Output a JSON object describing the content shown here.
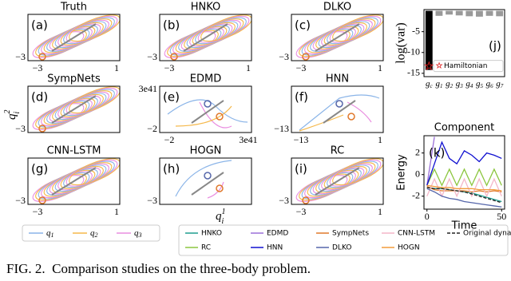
{
  "panels": [
    {
      "title": "Truth",
      "label": "(a)",
      "xticks": [
        "−3",
        "1"
      ],
      "yticks": [
        "−3"
      ]
    },
    {
      "title": "HNKO",
      "label": "(b)",
      "xticks": [
        "−3",
        "1"
      ],
      "yticks": [
        "−3"
      ]
    },
    {
      "title": "DLKO",
      "label": "(c)",
      "xticks": [
        "−3",
        "1"
      ],
      "yticks": [
        "−3"
      ]
    },
    {
      "title": "SympNets",
      "label": "(d)",
      "xticks": [],
      "yticks": [
        "−3"
      ]
    },
    {
      "title": "EDMD",
      "label": "(e)",
      "xticks": [
        "−2",
        "3e41"
      ],
      "yticks": [
        "3e41",
        "−2"
      ]
    },
    {
      "title": "HNN",
      "label": "(f)",
      "xticks": [
        "−13",
        "1"
      ],
      "yticks": [
        "−13"
      ]
    },
    {
      "title": "CNN-LSTM",
      "label": "(g)",
      "xticks": [
        "−3",
        "1"
      ],
      "yticks": [
        "−3"
      ]
    },
    {
      "title": "HOGN",
      "label": "(h)",
      "xticks": [],
      "yticks": [
        "−3"
      ]
    },
    {
      "title": "RC",
      "label": "(i)",
      "xticks": [
        "−3",
        "1"
      ],
      "yticks": [
        "−3"
      ]
    }
  ],
  "axis_labels": {
    "y": {
      "base": "q",
      "sub": "i",
      "sup": "2"
    },
    "x": {
      "base": "q",
      "sub": "i",
      "sup": "1"
    }
  },
  "trajectory_legend": [
    {
      "base": "q",
      "sub": "1",
      "color": "#8ab4e8"
    },
    {
      "base": "q",
      "sub": "2",
      "color": "#f5b84a"
    },
    {
      "base": "q",
      "sub": "3",
      "color": "#e98ee0"
    }
  ],
  "chart_data": [
    {
      "type": "bar",
      "label": "(j)",
      "ylabel": "log(var)",
      "category_symbol": "g",
      "categories": [
        "c",
        "1",
        "2",
        "3",
        "4",
        "5",
        "6",
        "7"
      ],
      "values": [
        -14.2,
        -1.2,
        -0.9,
        -1.1,
        -1.3,
        -1.4,
        -1.2,
        -1.3
      ],
      "colors": [
        "#000000",
        "#999999",
        "#999999",
        "#999999",
        "#999999",
        "#999999",
        "#999999",
        "#999999"
      ],
      "ylim": [
        -15.8,
        0.3
      ],
      "yticks": [
        -15,
        -10,
        -5
      ],
      "annotation": "Hamiltonian",
      "annotation_color": "#e02020"
    },
    {
      "type": "line",
      "label": "(k)",
      "title": "Component",
      "xlabel": "Time",
      "ylabel": "Energy",
      "x": [
        0,
        5,
        10,
        15,
        20,
        25,
        30,
        35,
        40,
        45,
        50
      ],
      "xlim": [
        -2,
        52
      ],
      "xticks": [
        0,
        50
      ],
      "ylim": [
        -3.2,
        3.6
      ],
      "yticks": [
        -2,
        0,
        2
      ],
      "series": [
        {
          "name": "HNKO",
          "color": "#1f9e8f",
          "values": [
            -1.2,
            -1.3,
            -1.3,
            -1.4,
            -1.5,
            -1.6,
            -1.7,
            -1.9,
            -2.1,
            -2.3,
            -2.5
          ]
        },
        {
          "name": "EDMD",
          "color": "#9a6fd8",
          "values": [
            -1.0,
            3.5,
            null,
            null,
            null,
            null,
            null,
            null,
            null,
            null,
            null
          ]
        },
        {
          "name": "SympNets",
          "color": "#e0782a",
          "values": [
            -1.1,
            -1.4,
            -1.5,
            -1.5,
            -1.5,
            -1.5,
            -1.6,
            -1.5,
            -1.6,
            -1.5,
            -1.6
          ]
        },
        {
          "name": "CNN-LSTM",
          "color": "#f4b6c8",
          "values": [
            -2.0,
            -0.4,
            -2.0,
            -0.4,
            -2.0,
            -0.4,
            -2.0,
            -0.4,
            -2.0,
            -0.4,
            -2.0
          ]
        },
        {
          "name": "Original dynamics",
          "color": "#222222",
          "dash": true,
          "values": [
            -1.2,
            -1.3,
            -1.3,
            -1.4,
            -1.5,
            -1.6,
            -1.8,
            -2.0,
            -2.2,
            -2.4,
            -2.6
          ]
        },
        {
          "name": "RC",
          "color": "#8cc63f",
          "values": [
            -1.0,
            0.5,
            -1.0,
            0.5,
            -1.0,
            0.5,
            -1.0,
            0.5,
            -1.0,
            0.5,
            -1.0
          ]
        },
        {
          "name": "HNN",
          "color": "#1010d0",
          "values": [
            -1.0,
            1.0,
            3.0,
            1.5,
            1.0,
            2.2,
            1.8,
            1.2,
            2.0,
            1.8,
            1.5
          ]
        },
        {
          "name": "DLKO",
          "color": "#5566aa",
          "values": [
            -1.3,
            -1.6,
            -2.0,
            -2.2,
            -2.3,
            -2.5,
            -2.6,
            -2.7,
            -2.8,
            -2.9,
            -3.0
          ]
        },
        {
          "name": "HOGN",
          "color": "#f29a3a",
          "values": [
            -1.0,
            -1.1,
            -1.2,
            -1.2,
            -1.3,
            -1.3,
            -1.3,
            -1.4,
            -1.4,
            -1.4,
            -1.5
          ]
        }
      ]
    }
  ],
  "caption": "FIG. 2.  Comparison studies on the three-body problem."
}
